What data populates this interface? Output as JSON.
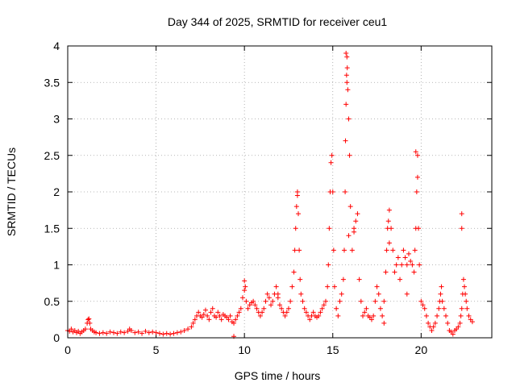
{
  "chart_data": {
    "type": "scatter",
    "title": "Day 344 of 2025, SRMTID for receiver ceu1",
    "xlabel": "GPS time / hours",
    "ylabel": "SRMTID / TECUs",
    "xlim": [
      0,
      24
    ],
    "ylim": [
      0,
      4
    ],
    "grid": true,
    "marker": "plus",
    "color": "#ff0000",
    "xticks": [
      {
        "value": 0,
        "label": "0"
      },
      {
        "value": 5,
        "label": "5"
      },
      {
        "value": 10,
        "label": "10"
      },
      {
        "value": 15,
        "label": "15"
      },
      {
        "value": 20,
        "label": "20"
      }
    ],
    "yticks": [
      {
        "value": 0,
        "label": "0"
      },
      {
        "value": 0.5,
        "label": "0.5"
      },
      {
        "value": 1,
        "label": "1"
      },
      {
        "value": 1.5,
        "label": "1.5"
      },
      {
        "value": 2,
        "label": "2"
      },
      {
        "value": 2.5,
        "label": "2.5"
      },
      {
        "value": 3,
        "label": "3"
      },
      {
        "value": 3.5,
        "label": "3.5"
      },
      {
        "value": 4,
        "label": "4"
      }
    ],
    "series": [
      {
        "name": "ceu1",
        "x": [
          0.0,
          0.1,
          0.2,
          0.3,
          0.4,
          0.5,
          0.6,
          0.7,
          0.8,
          0.9,
          1.0,
          1.1,
          1.15,
          1.2,
          1.25,
          1.3,
          1.4,
          1.5,
          1.6,
          1.8,
          2.0,
          2.2,
          2.4,
          2.6,
          2.8,
          3.0,
          3.2,
          3.4,
          3.5,
          3.6,
          3.8,
          4.0,
          4.2,
          4.4,
          4.6,
          4.8,
          5.0,
          5.2,
          5.4,
          5.6,
          5.8,
          6.0,
          6.2,
          6.4,
          6.6,
          6.8,
          7.0,
          7.1,
          7.2,
          7.3,
          7.4,
          7.5,
          7.6,
          7.7,
          7.8,
          7.9,
          8.0,
          8.1,
          8.2,
          8.3,
          8.4,
          8.5,
          8.6,
          8.7,
          8.8,
          8.9,
          9.0,
          9.1,
          9.2,
          9.3,
          9.4,
          9.5,
          9.6,
          9.7,
          9.8,
          9.9,
          10.0,
          10.05,
          10.1,
          10.2,
          10.3,
          10.4,
          10.5,
          10.6,
          10.7,
          10.8,
          10.9,
          11.0,
          11.1,
          11.2,
          11.3,
          11.4,
          11.5,
          11.6,
          11.7,
          11.8,
          11.9,
          12.0,
          12.1,
          12.2,
          12.3,
          12.4,
          12.5,
          12.6,
          12.7,
          12.8,
          12.85,
          12.9,
          12.95,
          13.0,
          13.05,
          13.1,
          13.15,
          13.2,
          13.3,
          13.4,
          13.5,
          13.6,
          13.7,
          13.8,
          13.9,
          14.0,
          14.1,
          14.2,
          14.3,
          14.4,
          14.5,
          14.6,
          14.7,
          14.75,
          14.8,
          14.85,
          14.9,
          14.95,
          15.0,
          15.05,
          15.1,
          15.2,
          15.3,
          15.4,
          15.5,
          15.6,
          15.65,
          15.7,
          15.72,
          15.75,
          15.78,
          15.8,
          15.82,
          15.85,
          15.9,
          15.95,
          16.0,
          16.1,
          16.2,
          16.3,
          16.4,
          16.5,
          16.6,
          16.7,
          16.8,
          16.9,
          17.0,
          17.1,
          17.2,
          17.3,
          17.4,
          17.5,
          17.6,
          17.7,
          17.8,
          17.9,
          18.0,
          18.05,
          18.1,
          18.15,
          18.2,
          18.3,
          18.4,
          18.5,
          18.6,
          18.7,
          18.8,
          18.9,
          19.0,
          19.1,
          19.2,
          19.3,
          19.4,
          19.5,
          19.6,
          19.65,
          19.7,
          19.75,
          19.8,
          19.85,
          19.9,
          20.0,
          20.1,
          20.2,
          20.3,
          20.4,
          20.5,
          20.6,
          20.7,
          20.8,
          20.9,
          21.0,
          21.05,
          21.1,
          21.15,
          21.2,
          21.3,
          21.4,
          21.5,
          21.6,
          21.7,
          21.8,
          21.9,
          22.0,
          22.1,
          22.2,
          22.25,
          22.3,
          22.35,
          22.4,
          22.45,
          22.5,
          22.55,
          22.6,
          22.7,
          22.8,
          22.9,
          11.9,
          13.0,
          15.75,
          15.8,
          19.7,
          19.8,
          22.3,
          22.3,
          15.9,
          16.2,
          18.2,
          17.9,
          19.2,
          9.4,
          10.0
        ],
        "y": [
          0.1,
          0.09,
          0.12,
          0.08,
          0.1,
          0.07,
          0.09,
          0.06,
          0.08,
          0.1,
          0.12,
          0.2,
          0.25,
          0.26,
          0.2,
          0.12,
          0.1,
          0.08,
          0.07,
          0.06,
          0.07,
          0.06,
          0.08,
          0.07,
          0.06,
          0.08,
          0.07,
          0.09,
          0.12,
          0.1,
          0.07,
          0.08,
          0.06,
          0.09,
          0.07,
          0.08,
          0.07,
          0.06,
          0.05,
          0.06,
          0.05,
          0.06,
          0.07,
          0.08,
          0.1,
          0.12,
          0.15,
          0.2,
          0.25,
          0.3,
          0.35,
          0.3,
          0.28,
          0.32,
          0.38,
          0.3,
          0.25,
          0.35,
          0.4,
          0.3,
          0.28,
          0.35,
          0.3,
          0.25,
          0.32,
          0.3,
          0.28,
          0.25,
          0.3,
          0.22,
          0.2,
          0.25,
          0.3,
          0.35,
          0.4,
          0.55,
          0.78,
          0.7,
          0.5,
          0.4,
          0.45,
          0.48,
          0.5,
          0.45,
          0.4,
          0.35,
          0.3,
          0.35,
          0.4,
          0.5,
          0.6,
          0.55,
          0.45,
          0.5,
          0.6,
          0.7,
          0.55,
          0.45,
          0.4,
          0.35,
          0.3,
          0.35,
          0.4,
          0.5,
          0.7,
          0.9,
          1.2,
          1.5,
          1.8,
          2.0,
          1.7,
          1.2,
          0.8,
          0.6,
          0.5,
          0.4,
          0.35,
          0.3,
          0.25,
          0.3,
          0.35,
          0.3,
          0.28,
          0.3,
          0.35,
          0.4,
          0.45,
          0.5,
          0.7,
          1.0,
          1.5,
          2.0,
          2.4,
          2.5,
          2.0,
          1.2,
          0.7,
          0.4,
          0.3,
          0.5,
          0.6,
          0.8,
          1.2,
          2.0,
          2.7,
          3.2,
          3.6,
          3.85,
          3.7,
          3.4,
          3.0,
          2.5,
          1.8,
          1.2,
          1.5,
          1.6,
          1.7,
          0.8,
          0.5,
          0.3,
          0.35,
          0.4,
          0.3,
          0.28,
          0.25,
          0.3,
          0.5,
          0.7,
          0.6,
          0.4,
          0.3,
          0.5,
          0.9,
          1.2,
          1.5,
          1.6,
          1.75,
          1.5,
          1.2,
          0.9,
          1.0,
          1.1,
          0.8,
          1.0,
          1.2,
          1.1,
          1.0,
          1.15,
          1.05,
          1.0,
          0.9,
          1.2,
          1.5,
          2.0,
          2.5,
          1.5,
          1.0,
          0.5,
          0.45,
          0.4,
          0.3,
          0.2,
          0.15,
          0.1,
          0.15,
          0.2,
          0.3,
          0.4,
          0.5,
          0.6,
          0.7,
          0.5,
          0.4,
          0.3,
          0.2,
          0.1,
          0.08,
          0.05,
          0.1,
          0.12,
          0.15,
          0.2,
          0.3,
          0.4,
          0.6,
          0.8,
          0.7,
          0.6,
          0.5,
          0.4,
          0.3,
          0.25,
          0.22,
          0.6,
          1.95,
          3.9,
          3.5,
          2.55,
          2.2,
          1.5,
          1.7,
          1.4,
          1.45,
          1.3,
          0.2,
          0.6,
          0.02,
          0.65
        ]
      }
    ]
  }
}
